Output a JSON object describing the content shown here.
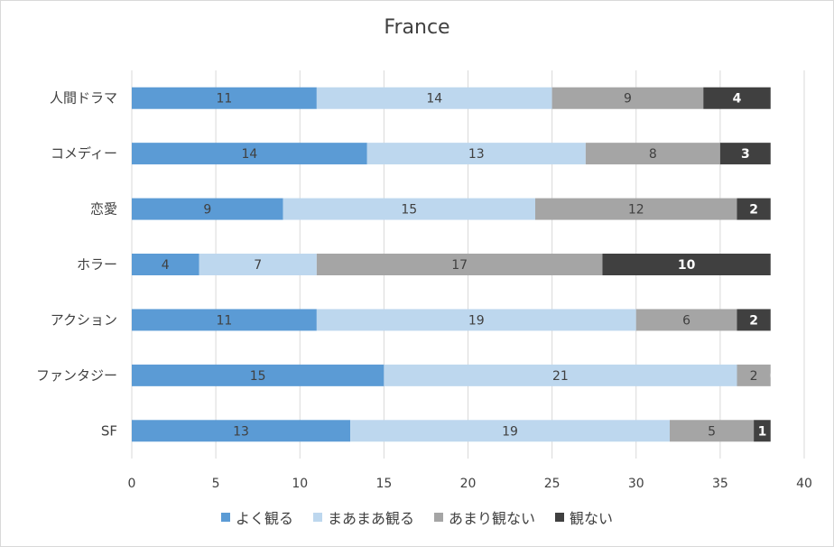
{
  "chart_data": {
    "type": "bar",
    "orientation": "horizontal",
    "stacked": true,
    "title": "France",
    "categories": [
      "人間ドラマ",
      "コメディー",
      "恋愛",
      "ホラー",
      "アクション",
      "ファンタジー",
      "SF"
    ],
    "series": [
      {
        "name": "よく観る",
        "color": "#5b9bd5",
        "values": [
          11,
          14,
          9,
          4,
          11,
          15,
          13
        ]
      },
      {
        "name": "まあまあ観る",
        "color": "#bdd7ee",
        "values": [
          14,
          13,
          15,
          7,
          19,
          21,
          19
        ]
      },
      {
        "name": "あまり観ない",
        "color": "#a5a5a5",
        "values": [
          9,
          8,
          12,
          17,
          6,
          2,
          5
        ]
      },
      {
        "name": "観ない",
        "color": "#404040",
        "values": [
          4,
          3,
          2,
          10,
          2,
          0,
          1
        ]
      }
    ],
    "xlim": [
      0,
      40
    ],
    "xticks": [
      "0",
      "5",
      "10",
      "15",
      "20",
      "25",
      "30",
      "35",
      "40"
    ],
    "grid": true,
    "legend_position": "bottom",
    "data_labels": true
  }
}
